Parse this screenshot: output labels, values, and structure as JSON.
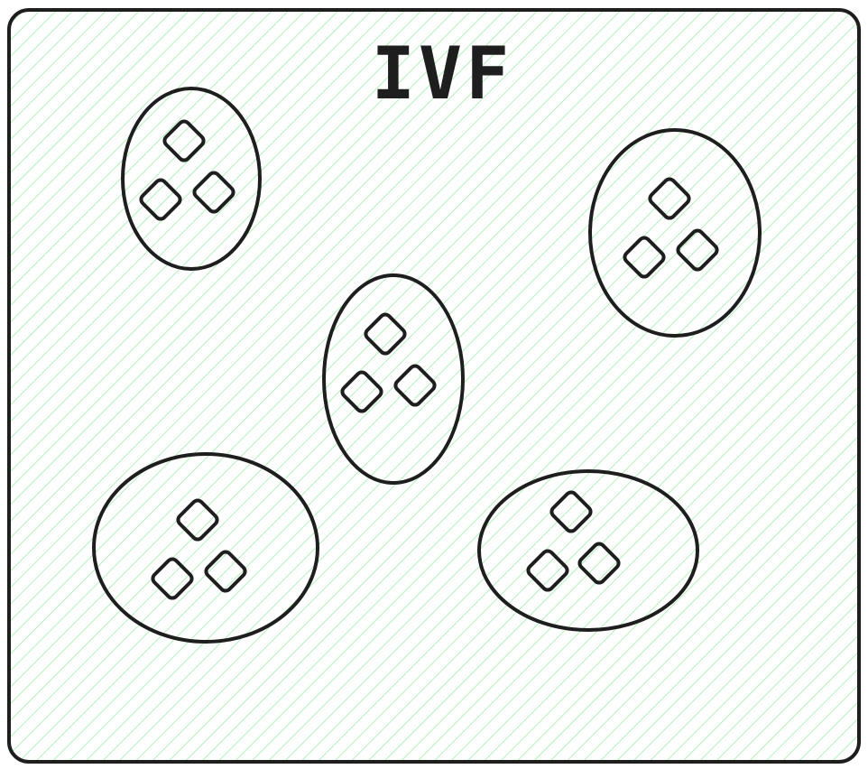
{
  "diagram": {
    "title": "IVF",
    "colors": {
      "stroke": "#1e1e1e",
      "hatch": "#b2f2bb",
      "background": "#ffffff"
    },
    "clusters": [
      {
        "id": "cluster-1",
        "points": 3
      },
      {
        "id": "cluster-2",
        "points": 3
      },
      {
        "id": "cluster-3",
        "points": 3
      },
      {
        "id": "cluster-4",
        "points": 3
      },
      {
        "id": "cluster-5",
        "points": 3
      }
    ]
  }
}
